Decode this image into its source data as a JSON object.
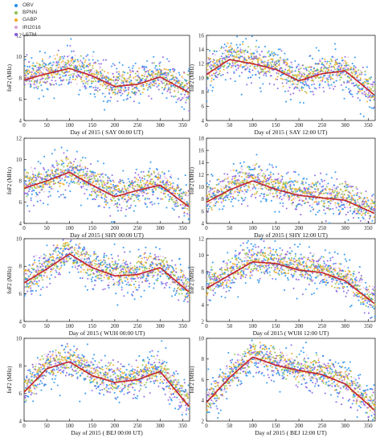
{
  "legend": [
    {
      "label": "OBV",
      "color": "#1f8ff0"
    },
    {
      "label": "BPNN",
      "color": "#8bc34a"
    },
    {
      "label": "GABP",
      "color": "#f0a91e"
    },
    {
      "label": "IRI2016",
      "color": "#d8a0d8"
    },
    {
      "label": "LSTM",
      "color": "#8a5ee0"
    }
  ],
  "model_line_color": "#c2242f",
  "chart_data": [
    {
      "type": "scatter",
      "xlabel": "Day of 2015 ( SAY 00:00 UT)",
      "ylabel": "foF2 (MHz)",
      "xlim": [
        0,
        365
      ],
      "ylim": [
        4,
        12
      ],
      "yticks": [
        4,
        6,
        8,
        10,
        12
      ],
      "xticks": [
        0,
        50,
        100,
        150,
        200,
        250,
        300,
        350
      ],
      "series": [
        {
          "name": "IRI2016",
          "x": [
            0,
            50,
            100,
            150,
            200,
            250,
            300,
            365
          ],
          "y": [
            7.8,
            8.4,
            8.9,
            8.2,
            7.2,
            7.4,
            8.1,
            6.6
          ]
        }
      ]
    },
    {
      "type": "scatter",
      "xlabel": "Day of 2015 ( SAY 12:00 UT)",
      "ylabel": "foF2 (MHz)",
      "xlim": [
        0,
        365
      ],
      "ylim": [
        4,
        16
      ],
      "yticks": [
        4,
        6,
        8,
        10,
        12,
        14,
        16
      ],
      "xticks": [
        0,
        50,
        100,
        150,
        200,
        250,
        300,
        350
      ],
      "series": [
        {
          "name": "IRI2016",
          "x": [
            0,
            50,
            100,
            150,
            200,
            250,
            300,
            365
          ],
          "y": [
            10.5,
            12.6,
            12.0,
            11.2,
            9.6,
            10.6,
            11.0,
            7.5
          ]
        }
      ]
    },
    {
      "type": "scatter",
      "xlabel": "Day of 2015 ( SHY 00:00 UT)",
      "ylabel": "foF2 (MHz)",
      "xlim": [
        0,
        365
      ],
      "ylim": [
        4,
        12
      ],
      "yticks": [
        4,
        6,
        8,
        10,
        12
      ],
      "xticks": [
        0,
        50,
        100,
        150,
        200,
        250,
        300,
        350
      ],
      "series": [
        {
          "name": "IRI2016",
          "x": [
            0,
            50,
            100,
            150,
            200,
            250,
            300,
            365
          ],
          "y": [
            7.3,
            8.0,
            8.8,
            7.6,
            6.5,
            7.1,
            7.6,
            5.5
          ]
        }
      ]
    },
    {
      "type": "scatter",
      "xlabel": "Day of 2015 ( SHY 12:00 UT)",
      "ylabel": "foF2 (MHz)",
      "xlim": [
        0,
        365
      ],
      "ylim": [
        4,
        18
      ],
      "yticks": [
        4,
        6,
        8,
        10,
        12,
        14,
        16,
        18
      ],
      "xticks": [
        0,
        50,
        100,
        150,
        200,
        250,
        300,
        350
      ],
      "series": [
        {
          "name": "IRI2016",
          "x": [
            0,
            50,
            100,
            150,
            200,
            250,
            300,
            365
          ],
          "y": [
            7.5,
            9.5,
            11.0,
            9.6,
            8.6,
            8.2,
            7.8,
            5.6
          ]
        }
      ]
    },
    {
      "type": "scatter",
      "xlabel": "Day of 2015 ( WUH 00:00 UT)",
      "ylabel": "foF2 (MHz)",
      "xlim": [
        0,
        365
      ],
      "ylim": [
        4,
        10
      ],
      "yticks": [
        4,
        6,
        8,
        10
      ],
      "xticks": [
        0,
        50,
        100,
        150,
        200,
        250,
        300,
        350
      ],
      "series": [
        {
          "name": "IRI2016",
          "x": [
            0,
            50,
            100,
            150,
            200,
            250,
            300,
            365
          ],
          "y": [
            6.8,
            7.8,
            8.9,
            7.9,
            7.3,
            7.4,
            7.9,
            6.1
          ]
        }
      ]
    },
    {
      "type": "scatter",
      "xlabel": "Day of 2015 ( WUH 12:00 UT)",
      "ylabel": "foF2 (MHz)",
      "xlim": [
        0,
        365
      ],
      "ylim": [
        2,
        12
      ],
      "yticks": [
        2,
        4,
        6,
        8,
        10,
        12
      ],
      "xticks": [
        0,
        50,
        100,
        150,
        200,
        250,
        300,
        350
      ],
      "series": [
        {
          "name": "IRI2016",
          "x": [
            0,
            50,
            100,
            150,
            200,
            250,
            300,
            365
          ],
          "y": [
            6.0,
            7.6,
            9.2,
            9.0,
            8.2,
            7.9,
            6.9,
            4.1
          ]
        }
      ]
    },
    {
      "type": "scatter",
      "xlabel": "Day of 2015 ( BEJ 00:00 UT)",
      "ylabel": "foF2 (MHz)",
      "xlim": [
        0,
        365
      ],
      "ylim": [
        4,
        10
      ],
      "yticks": [
        4,
        6,
        8,
        10
      ],
      "xticks": [
        0,
        50,
        100,
        150,
        200,
        250,
        300,
        350
      ],
      "series": [
        {
          "name": "IRI2016",
          "x": [
            0,
            50,
            100,
            150,
            200,
            250,
            300,
            365
          ],
          "y": [
            6.1,
            7.8,
            8.3,
            7.3,
            6.8,
            7.0,
            7.6,
            5.0
          ]
        }
      ]
    },
    {
      "type": "scatter",
      "xlabel": "Day of 2015 ( BEJ 12:00 UT)",
      "ylabel": "foF2 (MHz)",
      "xlim": [
        0,
        365
      ],
      "ylim": [
        2,
        10
      ],
      "yticks": [
        2,
        4,
        6,
        8,
        10
      ],
      "xticks": [
        0,
        50,
        100,
        150,
        200,
        250,
        300,
        350
      ],
      "series": [
        {
          "name": "IRI2016",
          "x": [
            0,
            50,
            100,
            150,
            200,
            250,
            300,
            365
          ],
          "y": [
            3.8,
            6.2,
            8.2,
            7.4,
            6.9,
            6.5,
            5.6,
            3.0
          ]
        }
      ]
    }
  ]
}
